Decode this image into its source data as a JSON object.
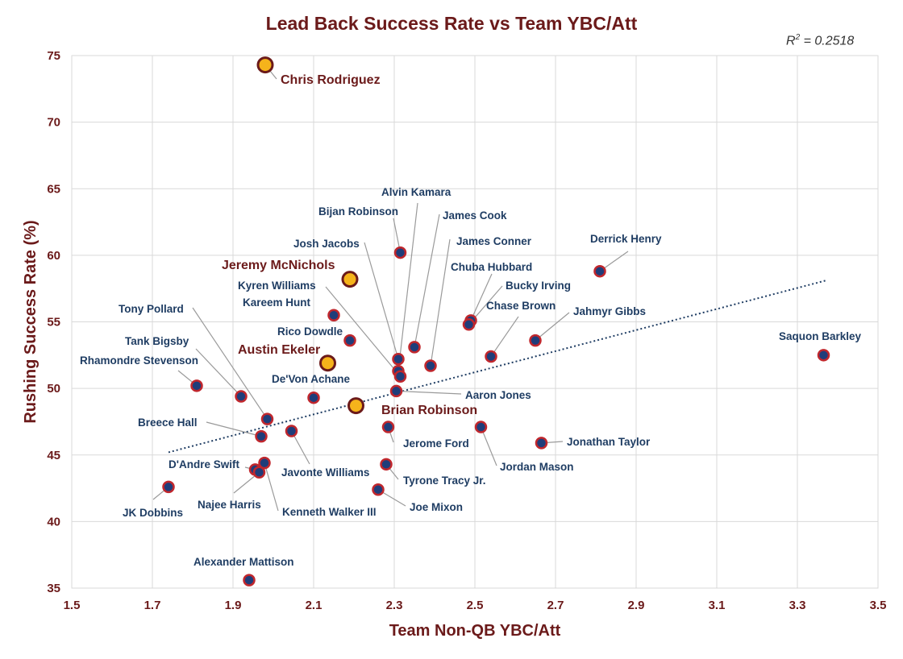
{
  "chart_data": {
    "type": "scatter",
    "title": "Lead Back Success Rate vs Team YBC/Att",
    "xlabel": "Team Non-QB YBC/Att",
    "ylabel": "Rushing Success Rate (%)",
    "xlim": [
      1.5,
      3.5
    ],
    "ylim": [
      35,
      75
    ],
    "x_ticks": [
      "1.5",
      "1.7",
      "1.9",
      "2.1",
      "2.3",
      "2.5",
      "2.7",
      "2.9",
      "3.1",
      "3.3",
      "3.5"
    ],
    "y_ticks": [
      "35",
      "40",
      "45",
      "50",
      "55",
      "60",
      "65",
      "70",
      "75"
    ],
    "grid": true,
    "trendline": {
      "label": "R",
      "superscript": "2",
      "value_text": " = 0.2518",
      "x": [
        1.74,
        3.37
      ],
      "y": [
        45.2,
        58.1
      ]
    },
    "colors": {
      "title": "#6b1a1a",
      "axis_label": "#6b1a1a",
      "point_fill": "#1f3d7a",
      "point_stroke": "#c0272d",
      "highlight_fill": "#f5b31b",
      "highlight_stroke": "#6b1a1a",
      "label": "#1f3d63",
      "leader": "#9a9a9a",
      "grid": "#d9d9d9",
      "trendline": "#1f3d63"
    },
    "points": [
      {
        "name": "Chris Rodriguez",
        "x": 1.98,
        "y": 74.3,
        "highlight": true
      },
      {
        "name": "Jeremy McNichols",
        "x": 2.19,
        "y": 58.2,
        "highlight": true
      },
      {
        "name": "Austin Ekeler",
        "x": 2.135,
        "y": 51.9,
        "highlight": true
      },
      {
        "name": "Brian Robinson",
        "x": 2.205,
        "y": 48.7,
        "highlight": true
      },
      {
        "name": "Alvin Kamara",
        "x": 2.31,
        "y": 51.3
      },
      {
        "name": "Bijan Robinson",
        "x": 2.315,
        "y": 60.2
      },
      {
        "name": "James Cook",
        "x": 2.35,
        "y": 53.1
      },
      {
        "name": "James Conner",
        "x": 2.39,
        "y": 51.7
      },
      {
        "name": "Josh Jacobs",
        "x": 2.31,
        "y": 52.2
      },
      {
        "name": "Derrick Henry",
        "x": 2.81,
        "y": 58.8
      },
      {
        "name": "Chuba Hubbard",
        "x": 2.49,
        "y": 55.1
      },
      {
        "name": "Kyren Williams",
        "x": 2.315,
        "y": 50.9
      },
      {
        "name": "Bucky Irving",
        "x": 2.485,
        "y": 54.8
      },
      {
        "name": "Kareem Hunt",
        "x": 2.15,
        "y": 55.5
      },
      {
        "name": "Tony Pollard",
        "x": 1.985,
        "y": 47.7
      },
      {
        "name": "Chase Brown",
        "x": 2.54,
        "y": 52.4
      },
      {
        "name": "Jahmyr Gibbs",
        "x": 2.65,
        "y": 53.6
      },
      {
        "name": "Rico Dowdle",
        "x": 2.19,
        "y": 53.6
      },
      {
        "name": "Saquon Barkley",
        "x": 3.365,
        "y": 52.5
      },
      {
        "name": "Tank Bigsby",
        "x": 1.92,
        "y": 49.4
      },
      {
        "name": "Rhamondre Stevenson",
        "x": 1.81,
        "y": 50.2
      },
      {
        "name": "De'Von Achane",
        "x": 2.1,
        "y": 49.3
      },
      {
        "name": "Aaron Jones",
        "x": 2.305,
        "y": 49.8
      },
      {
        "name": "Breece Hall",
        "x": 1.97,
        "y": 46.4
      },
      {
        "name": "Jerome Ford",
        "x": 2.285,
        "y": 47.1
      },
      {
        "name": "Jordan Mason",
        "x": 2.515,
        "y": 47.1
      },
      {
        "name": "Jonathan Taylor",
        "x": 2.665,
        "y": 45.9
      },
      {
        "name": "D'Andre Swift",
        "x": 1.955,
        "y": 43.9
      },
      {
        "name": "Javonte Williams",
        "x": 2.045,
        "y": 46.8
      },
      {
        "name": "Tyrone Tracy Jr.",
        "x": 2.28,
        "y": 44.3
      },
      {
        "name": "Najee Harris",
        "x": 1.965,
        "y": 43.7
      },
      {
        "name": "Kenneth Walker III",
        "x": 1.978,
        "y": 44.4
      },
      {
        "name": "Joe Mixon",
        "x": 2.26,
        "y": 42.4
      },
      {
        "name": "JK Dobbins",
        "x": 1.74,
        "y": 42.6
      },
      {
        "name": "Alexander Mattison",
        "x": 1.94,
        "y": 35.6
      }
    ]
  }
}
